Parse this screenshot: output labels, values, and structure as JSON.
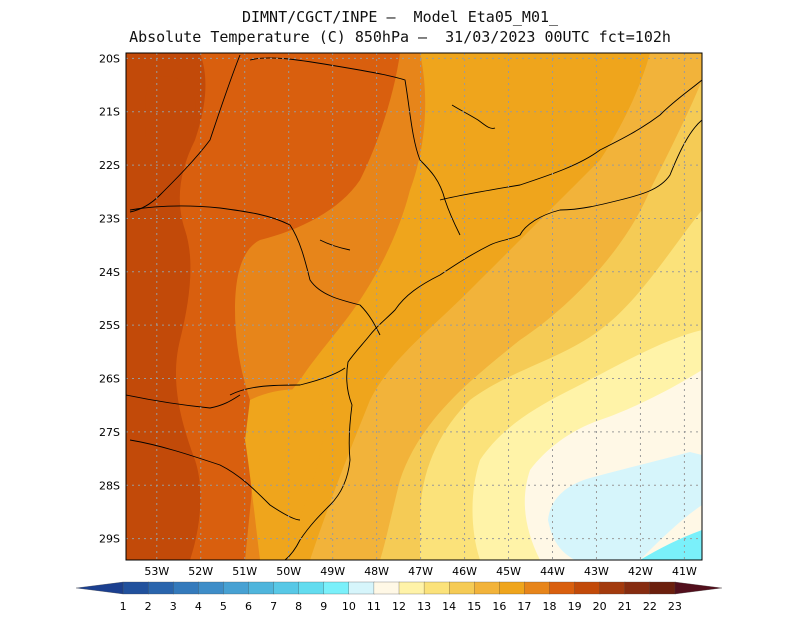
{
  "header": {
    "title_line1": "DIMNT/CGCT/INPE –  Model Eta05_M01_",
    "title_line2": "Absolute Temperature (C) 850hPa –  31/03/2023 00UTC fct=102h"
  },
  "map": {
    "lat_labels": [
      "20S",
      "21S",
      "22S",
      "23S",
      "24S",
      "25S",
      "26S",
      "27S",
      "28S",
      "29S"
    ],
    "lon_labels": [
      "53W",
      "52W",
      "51W",
      "50W",
      "49W",
      "48W",
      "47W",
      "46W",
      "45W",
      "44W",
      "43W",
      "42W",
      "41W"
    ],
    "lat_range": [
      -29.4,
      -19.9
    ],
    "lon_range": [
      -53.7,
      -40.6
    ]
  },
  "colorbar": {
    "labels": [
      "1",
      "2",
      "3",
      "4",
      "5",
      "6",
      "7",
      "8",
      "9",
      "10",
      "11",
      "12",
      "13",
      "14",
      "15",
      "16",
      "17",
      "18",
      "19",
      "20",
      "21",
      "22",
      "23"
    ],
    "colors": [
      "#1b3f8f",
      "#21519d",
      "#2a65ad",
      "#347abc",
      "#3e8dc8",
      "#47a1d3",
      "#4fb5dc",
      "#58c8e6",
      "#63dcef",
      "#7af0fa",
      "#d6f5fb",
      "#fff8e6",
      "#fff3a8",
      "#fbe27a",
      "#f5cb55",
      "#f2b33a",
      "#efa51c",
      "#e7851a",
      "#d95f0e",
      "#c24a09",
      "#a33a0d",
      "#862c10",
      "#6b1f0d",
      "#520f1c"
    ]
  },
  "fields": {
    "colors": {
      "t20": "#c24a09",
      "t19": "#d95f0e",
      "t18": "#e7851a",
      "t17": "#efa51c",
      "t16": "#f2b33a",
      "t15": "#f5cb55",
      "t14": "#fbe27a",
      "t13": "#fff3a8",
      "t12": "#fff8e6",
      "t11": "#d6f5fb",
      "t10": "#7af0fa"
    }
  }
}
